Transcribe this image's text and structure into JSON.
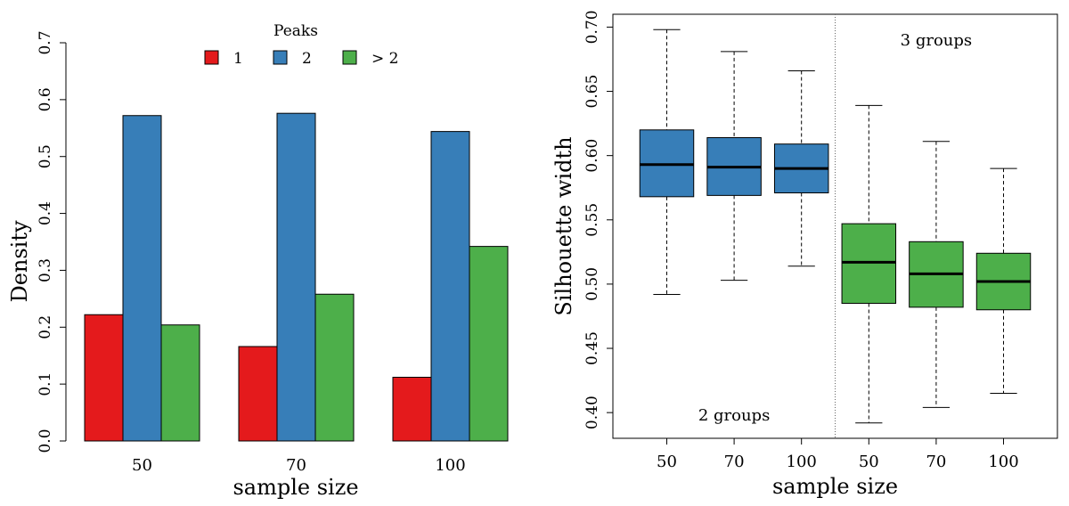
{
  "chart_data": [
    {
      "type": "bar",
      "xlabel": "sample size",
      "ylabel": "Density",
      "categories": [
        "50",
        "70",
        "100"
      ],
      "ylim": [
        0,
        0.7
      ],
      "yticks": [
        "0.0",
        "0.1",
        "0.2",
        "0.3",
        "0.4",
        "0.5",
        "0.6",
        "0.7"
      ],
      "legend": {
        "title": "Peaks",
        "placement": "top",
        "entries": [
          "1",
          "2",
          "> 2"
        ]
      },
      "series": [
        {
          "name": "1",
          "color": "#e41a1c",
          "values": [
            0.222,
            0.166,
            0.112
          ]
        },
        {
          "name": "2",
          "color": "#377eb8",
          "values": [
            0.572,
            0.576,
            0.544
          ]
        },
        {
          "name": "> 2",
          "color": "#4daf4a",
          "values": [
            0.204,
            0.258,
            0.342
          ]
        }
      ],
      "grid": false
    },
    {
      "type": "box",
      "xlabel": "sample size",
      "ylabel": "Silhouette width",
      "ylim": [
        0.38,
        0.71
      ],
      "yticks": [
        "0.40",
        "0.45",
        "0.50",
        "0.55",
        "0.60",
        "0.65",
        "0.70"
      ],
      "categories": [
        "50",
        "70",
        "100",
        "50",
        "70",
        "100"
      ],
      "groups": [
        {
          "label": "2 groups",
          "color": "#377eb8",
          "boxes": [
            {
              "x": "50",
              "min": 0.492,
              "q1": 0.568,
              "median": 0.593,
              "q3": 0.62,
              "max": 0.698
            },
            {
              "x": "70",
              "min": 0.503,
              "q1": 0.569,
              "median": 0.591,
              "q3": 0.614,
              "max": 0.681
            },
            {
              "x": "100",
              "min": 0.514,
              "q1": 0.571,
              "median": 0.59,
              "q3": 0.609,
              "max": 0.666
            }
          ]
        },
        {
          "label": "3 groups",
          "color": "#4daf4a",
          "boxes": [
            {
              "x": "50",
              "min": 0.392,
              "q1": 0.485,
              "median": 0.517,
              "q3": 0.547,
              "max": 0.639
            },
            {
              "x": "70",
              "min": 0.404,
              "q1": 0.482,
              "median": 0.508,
              "q3": 0.533,
              "max": 0.611
            },
            {
              "x": "100",
              "min": 0.415,
              "q1": 0.48,
              "median": 0.502,
              "q3": 0.524,
              "max": 0.59
            }
          ]
        }
      ],
      "grid": false
    }
  ]
}
